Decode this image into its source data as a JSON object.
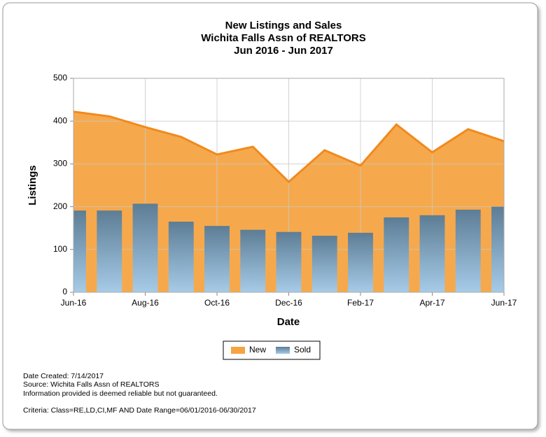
{
  "chart_data": {
    "type": "area-bar",
    "title": [
      "New Listings and Sales",
      "Wichita Falls Assn of REALTORS",
      "Jun 2016 - Jun 2017"
    ],
    "x_label": "Date",
    "y_label": "Listings",
    "categories": [
      "Jun-16",
      null,
      "Aug-16",
      null,
      "Oct-16",
      null,
      "Dec-16",
      null,
      "Feb-17",
      null,
      "Apr-17",
      null,
      "Jun-17"
    ],
    "series": [
      {
        "name": "New",
        "type": "area",
        "color": "#f5a442",
        "values": [
          422,
          411,
          386,
          363,
          322,
          340,
          258,
          332,
          296,
          392,
          327,
          381,
          353
        ]
      },
      {
        "name": "Sold",
        "type": "bar",
        "color": "#6b8ba3",
        "values": [
          191,
          191,
          207,
          165,
          155,
          146,
          141,
          132,
          139,
          175,
          180,
          193,
          200
        ]
      }
    ],
    "ylim": [
      0,
      500
    ],
    "yticks": [
      0,
      100,
      200,
      300,
      400,
      500
    ],
    "grid": true,
    "legend": "bottom",
    "notes": [
      "Date Created: 7/14/2017",
      "Source: Wichita Falls Assn of REALTORS",
      "Information provided is deemed reliable but not guaranteed.",
      "Criteria: Class=RE,LD,CI,MF AND Date Range=06/01/2016-06/30/2017"
    ]
  }
}
